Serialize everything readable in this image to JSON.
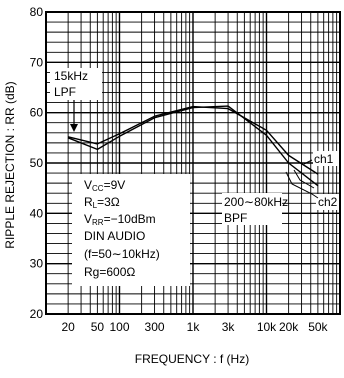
{
  "chart_data": {
    "type": "line",
    "xlabel": "FREQUENCY : f (Hz)",
    "ylabel": "RIPPLE REJECTION : RR (dB)",
    "x_scale": "log",
    "xlim": [
      10,
      100000
    ],
    "ylim": [
      20,
      80
    ],
    "x_ticks": [
      20,
      50,
      100,
      300,
      1000,
      3000,
      10000,
      20000,
      50000
    ],
    "x_tick_labels": [
      "20",
      "50",
      "100",
      "300",
      "1k",
      "3k",
      "10k",
      "20k",
      "50k"
    ],
    "y_ticks": [
      20,
      30,
      40,
      50,
      60,
      70,
      80
    ],
    "y_tick_labels": [
      "20",
      "30",
      "40",
      "50",
      "60",
      "70",
      "80"
    ],
    "grid": true,
    "series": [
      {
        "name": "ch1",
        "x": [
          20,
          50,
          100,
          300,
          1000,
          3000,
          10000,
          20000,
          50000
        ],
        "y": [
          55.2,
          53.8,
          55.8,
          59.3,
          61.2,
          60.8,
          56.5,
          51.5,
          47.8
        ]
      },
      {
        "name": "ch2",
        "x": [
          20,
          50,
          100,
          300,
          1000,
          3000,
          10000,
          20000,
          50000
        ],
        "y": [
          55.0,
          52.7,
          55.3,
          59.0,
          61.0,
          61.3,
          55.5,
          50.0,
          45.5
        ]
      }
    ],
    "annotations": {
      "lpf_line1": "15kHz",
      "lpf_line2": "LPF",
      "bpf_line1": "200∼80kHz",
      "bpf_line2": "BPF",
      "conditions": {
        "vcc": {
          "main": "V",
          "sub": "CC",
          "rest": "=9V"
        },
        "rl": {
          "main": "R",
          "sub": "L",
          "rest": "=3Ω"
        },
        "vrr": {
          "main": "V",
          "sub": "RR",
          "rest": "=−10dBm"
        },
        "din": "DIN AUDIO",
        "band": "(f=50∼10kHz)",
        "rg": "Rg=600Ω"
      }
    }
  }
}
